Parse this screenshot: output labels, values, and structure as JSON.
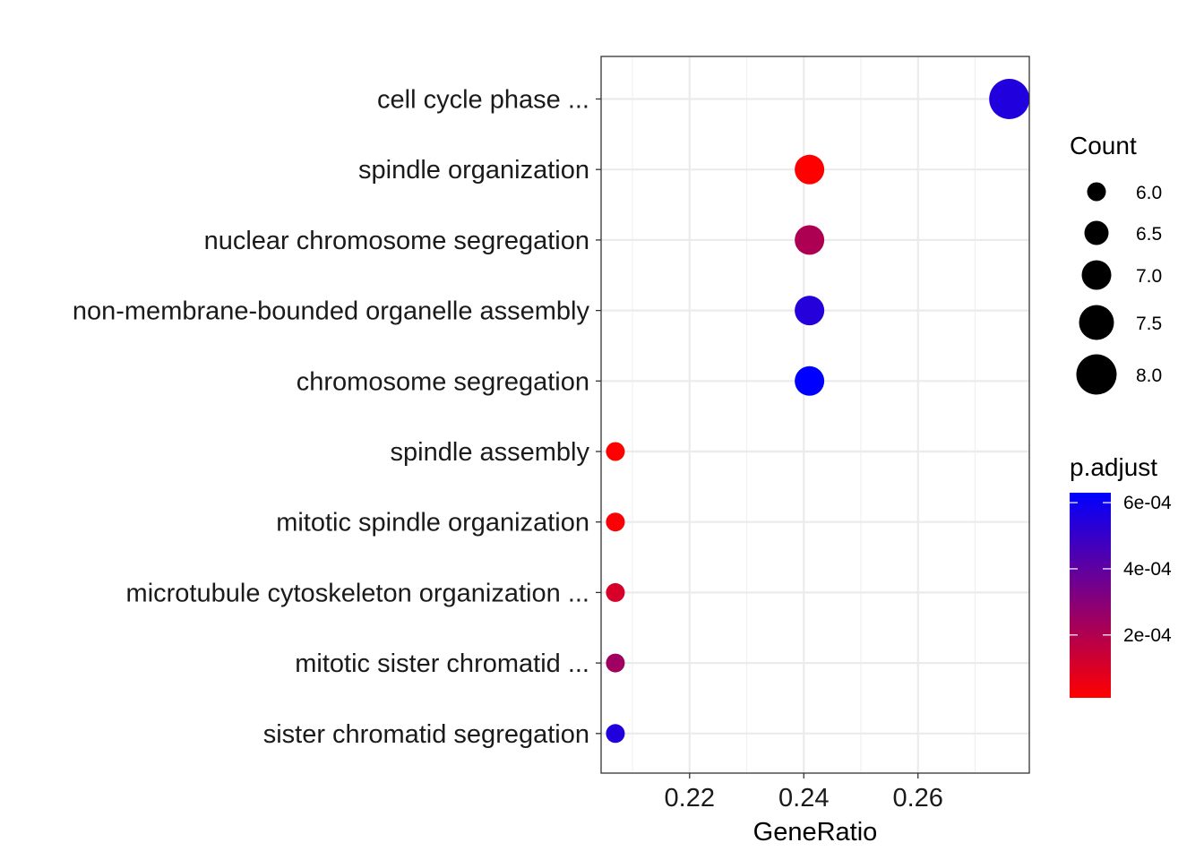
{
  "chart_data": {
    "type": "scatter",
    "xlabel": "GeneRatio",
    "xlim": [
      0.2045,
      0.2795
    ],
    "x_ticks": [
      "0.22",
      "0.24",
      "0.26"
    ],
    "x_tick_values": [
      0.22,
      0.24,
      0.26
    ],
    "x_minor_values": [
      0.21,
      0.23,
      0.25,
      0.27
    ],
    "grid": true,
    "categories": [
      "cell cycle phase ...",
      "spindle organization",
      "nuclear chromosome segregation",
      "non-membrane-bounded organelle assembly",
      "chromosome segregation",
      "spindle assembly",
      "mitotic spindle organization",
      "microtubule cytoskeleton organization ...",
      "mitotic sister chromatid ...",
      "sister chromatid segregation"
    ],
    "points": [
      {
        "category": "cell cycle phase ...",
        "gene_ratio": 0.276,
        "count": 8,
        "p_adjust": 0.00055
      },
      {
        "category": "spindle organization",
        "gene_ratio": 0.241,
        "count": 7,
        "p_adjust": 1e-05
      },
      {
        "category": "nuclear chromosome segregation",
        "gene_ratio": 0.241,
        "count": 7,
        "p_adjust": 0.00021
      },
      {
        "category": "non-membrane-bounded organelle assembly",
        "gene_ratio": 0.241,
        "count": 7,
        "p_adjust": 0.00054
      },
      {
        "category": "chromosome segregation",
        "gene_ratio": 0.241,
        "count": 7,
        "p_adjust": 0.00063
      },
      {
        "category": "spindle assembly",
        "gene_ratio": 0.207,
        "count": 6,
        "p_adjust": 1e-05
      },
      {
        "category": "mitotic spindle organization",
        "gene_ratio": 0.207,
        "count": 6,
        "p_adjust": 2e-05
      },
      {
        "category": "microtubule cytoskeleton organization ...",
        "gene_ratio": 0.207,
        "count": 6,
        "p_adjust": 0.00011
      },
      {
        "category": "mitotic sister chromatid ...",
        "gene_ratio": 0.207,
        "count": 6,
        "p_adjust": 0.00024
      },
      {
        "category": "sister chromatid segregation",
        "gene_ratio": 0.207,
        "count": 6,
        "p_adjust": 0.00055
      }
    ],
    "size_legend": {
      "title": "Count",
      "labels": [
        "6.0",
        "6.5",
        "7.0",
        "7.5",
        "8.0"
      ],
      "values": [
        6.0,
        6.5,
        7.0,
        7.5,
        8.0
      ]
    },
    "color_legend": {
      "title": "p.adjust",
      "labels": [
        "6e-04",
        "4e-04",
        "2e-04"
      ],
      "values": [
        0.0006,
        0.0004,
        0.0002
      ],
      "range": [
        1e-05,
        0.00063
      ],
      "low_color": "#ff0000",
      "high_color": "#0000ff"
    },
    "legend_position": "right"
  }
}
